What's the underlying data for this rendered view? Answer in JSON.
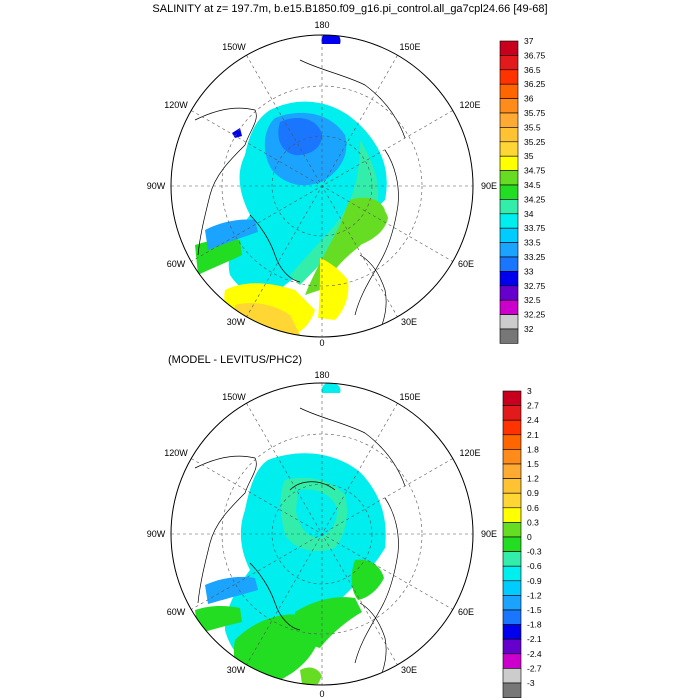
{
  "top_panel": {
    "title": "SALINITY at z= 197.7m, b.e15.B1850.f09_g16.pi_control.all_ga7cpl24.66 [49-68]",
    "longitude_labels": {
      "n": "180",
      "nw": "150W",
      "ne": "150E",
      "wnw": "120W",
      "ene": "120E",
      "w": "90W",
      "e": "90E",
      "wsw": "60W",
      "ese": "60E",
      "ssw": "30W",
      "sse": "30E",
      "s": "0"
    },
    "colorbar": {
      "labels": [
        "37",
        "36.75",
        "36.5",
        "36.25",
        "36",
        "35.75",
        "35.5",
        "35.25",
        "35",
        "34.75",
        "34.5",
        "34.25",
        "34",
        "33.75",
        "33.5",
        "33.25",
        "33",
        "32.75",
        "32.5",
        "32.25",
        "32"
      ],
      "colors": [
        "#c8001e",
        "#e31a1c",
        "#ff3300",
        "#ff6600",
        "#ff8c1a",
        "#ffaa33",
        "#ffc233",
        "#ffd633",
        "#ffff00",
        "#66dd22",
        "#22dd22",
        "#33eeaa",
        "#00eeee",
        "#00ccff",
        "#1aa3ff",
        "#1a75ff",
        "#0000ee",
        "#6600cc",
        "#cc00cc",
        "#cccccc",
        "#777777"
      ]
    }
  },
  "bottom_panel": {
    "title": "(MODEL - LEVITUS/PHC2)",
    "longitude_labels": {
      "n": "180",
      "nw": "150W",
      "ne": "150E",
      "wnw": "120W",
      "ene": "120E",
      "w": "90W",
      "e": "90E",
      "wsw": "60W",
      "ese": "60E",
      "ssw": "30W",
      "sse": "30E",
      "s": "0"
    },
    "colorbar": {
      "labels": [
        "3",
        "2.7",
        "2.4",
        "2.1",
        "1.8",
        "1.5",
        "1.2",
        "0.9",
        "0.6",
        "0.3",
        "0",
        "-0.3",
        "-0.6",
        "-0.9",
        "-1.2",
        "-1.5",
        "-1.8",
        "-2.1",
        "-2.4",
        "-2.7",
        "-3"
      ],
      "colors": [
        "#c8001e",
        "#e31a1c",
        "#ff3300",
        "#ff6600",
        "#ff8c1a",
        "#ffaa33",
        "#ffc233",
        "#ffd633",
        "#ffff00",
        "#66dd22",
        "#22dd22",
        "#33eeaa",
        "#00eeee",
        "#00ccff",
        "#1aa3ff",
        "#1a75ff",
        "#0000ee",
        "#6600cc",
        "#cc00cc",
        "#cccccc",
        "#777777"
      ]
    }
  }
}
